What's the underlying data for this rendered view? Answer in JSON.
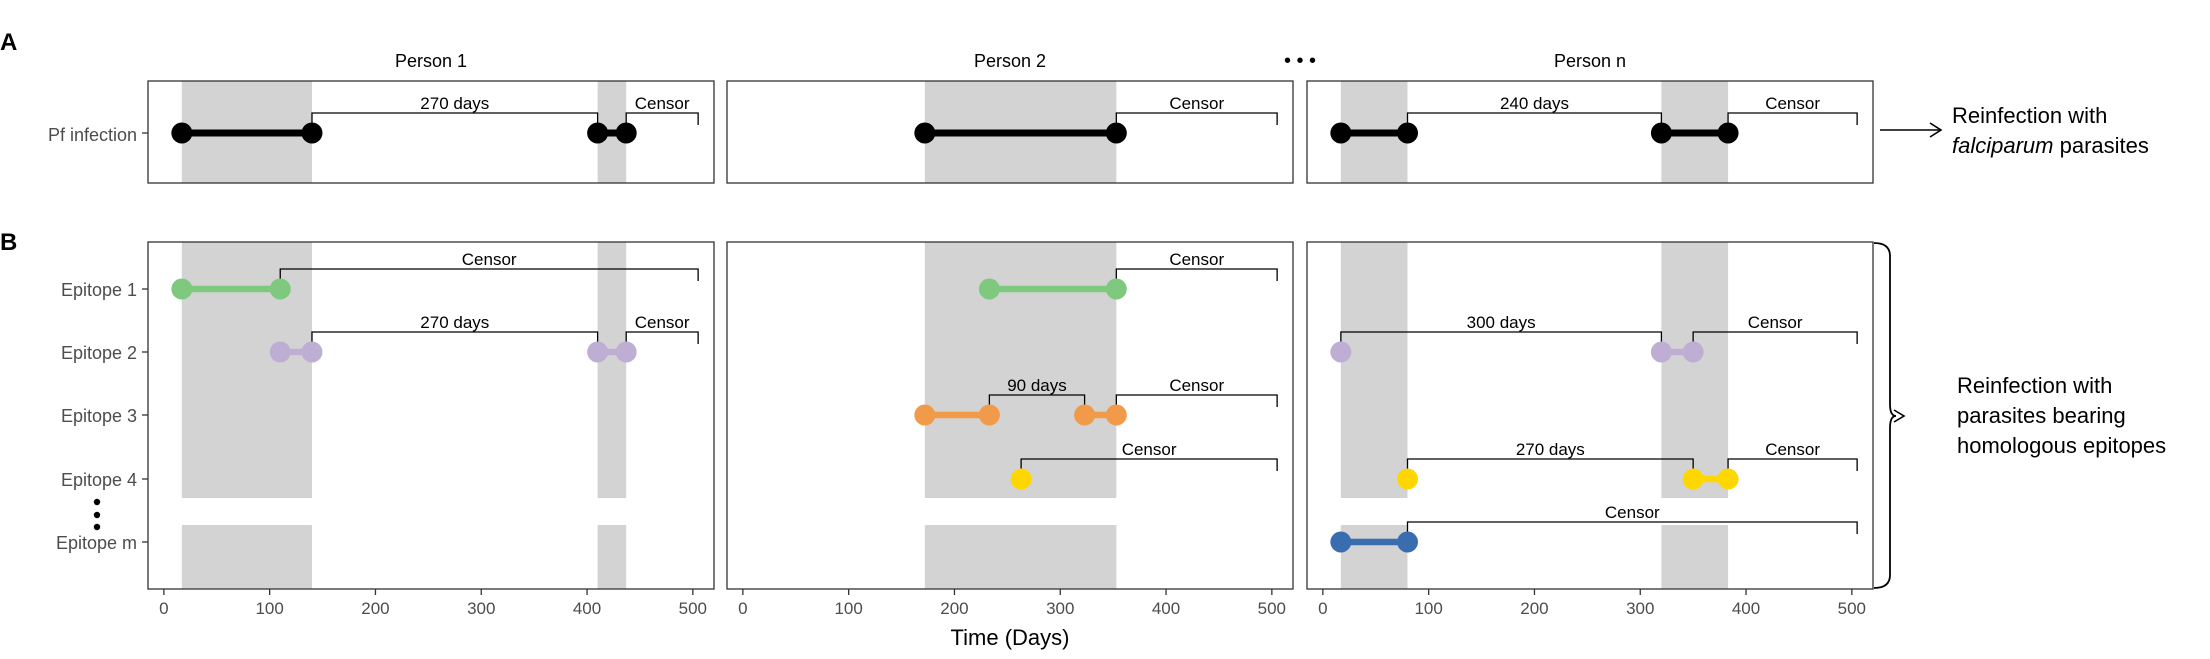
{
  "panel_labels": [
    "A",
    "B"
  ],
  "person_titles": [
    "Person 1",
    "Person 2",
    "Person n"
  ],
  "ellipsis": "• • •",
  "row_a_label": "Pf infection",
  "row_b_labels": [
    "Epitope 1",
    "Epitope 2",
    "Epitope 3",
    "Epitope 4",
    "Epitope m"
  ],
  "xaxis": {
    "label": "Time (Days)",
    "ticks": [
      0,
      100,
      200,
      300,
      400,
      500
    ],
    "range": [
      -15,
      520
    ]
  },
  "annotation_a": {
    "line1": "Reinfection with",
    "line2_italic": "falciparum",
    "line2_rest": " parasites"
  },
  "annotation_b": {
    "lines": [
      "Reinfection with",
      "parasites bearing",
      "homologous epitopes"
    ]
  },
  "colors": {
    "pf": "#000000",
    "epitope1": "#7fc97f",
    "epitope2": "#beaed4",
    "epitope3": "#f09a4a",
    "epitope4": "#ffd700",
    "epitopem": "#3a6db0",
    "shade": "#d3d3d3",
    "frame": "#333333"
  },
  "chart_data": [
    {
      "type": "timeline",
      "person": "Person 1",
      "shaded_periods": [
        [
          17,
          140
        ],
        [
          410,
          437
        ]
      ],
      "panel_a": {
        "segments": [
          [
            17,
            140
          ],
          [
            410,
            437
          ]
        ],
        "brackets": [
          {
            "start": 140,
            "end": 410,
            "label": "270 days"
          },
          {
            "start": 437,
            "end": 505,
            "label": "Censor"
          }
        ]
      },
      "panel_b": [
        {
          "epitope": "Epitope 1",
          "color": "epitope1",
          "segments": [
            [
              17,
              110
            ]
          ],
          "brackets": [
            {
              "start": 110,
              "end": 505,
              "label": "Censor"
            }
          ]
        },
        {
          "epitope": "Epitope 2",
          "color": "epitope2",
          "segments": [
            [
              110,
              140
            ],
            [
              410,
              437
            ]
          ],
          "brackets": [
            {
              "start": 140,
              "end": 410,
              "label": "270 days"
            },
            {
              "start": 437,
              "end": 505,
              "label": "Censor"
            }
          ]
        },
        {
          "epitope": "Epitope 3",
          "color": "epitope3",
          "segments": [],
          "brackets": []
        },
        {
          "epitope": "Epitope 4",
          "color": "epitope4",
          "segments": [],
          "brackets": []
        },
        {
          "epitope": "Epitope m",
          "color": "epitopem",
          "segments": [],
          "brackets": []
        }
      ]
    },
    {
      "type": "timeline",
      "person": "Person 2",
      "shaded_periods": [
        [
          172,
          353
        ]
      ],
      "panel_a": {
        "segments": [
          [
            172,
            353
          ]
        ],
        "brackets": [
          {
            "start": 353,
            "end": 505,
            "label": "Censor"
          }
        ]
      },
      "panel_b": [
        {
          "epitope": "Epitope 1",
          "color": "epitope1",
          "segments": [
            [
              233,
              353
            ]
          ],
          "brackets": [
            {
              "start": 353,
              "end": 505,
              "label": "Censor"
            }
          ]
        },
        {
          "epitope": "Epitope 2",
          "color": "epitope2",
          "segments": [],
          "brackets": []
        },
        {
          "epitope": "Epitope 3",
          "color": "epitope3",
          "segments": [
            [
              172,
              233
            ],
            [
              323,
              353
            ]
          ],
          "brackets": [
            {
              "start": 233,
              "end": 323,
              "label": "90 days"
            },
            {
              "start": 353,
              "end": 505,
              "label": "Censor"
            }
          ]
        },
        {
          "epitope": "Epitope 4",
          "color": "epitope4",
          "segments": [
            [
              263,
              263
            ]
          ],
          "brackets": [
            {
              "start": 263,
              "end": 505,
              "label": "Censor"
            }
          ]
        },
        {
          "epitope": "Epitope m",
          "color": "epitopem",
          "segments": [],
          "brackets": []
        }
      ]
    },
    {
      "type": "timeline",
      "person": "Person n",
      "shaded_periods": [
        [
          17,
          80
        ],
        [
          320,
          383
        ]
      ],
      "panel_a": {
        "segments": [
          [
            17,
            80
          ],
          [
            320,
            383
          ]
        ],
        "brackets": [
          {
            "start": 80,
            "end": 320,
            "label": "240 days"
          },
          {
            "start": 383,
            "end": 505,
            "label": "Censor"
          }
        ]
      },
      "panel_b": [
        {
          "epitope": "Epitope 1",
          "color": "epitope1",
          "segments": [],
          "brackets": []
        },
        {
          "epitope": "Epitope 2",
          "color": "epitope2",
          "segments": [
            [
              17,
              17
            ],
            [
              320,
              350
            ]
          ],
          "brackets": [
            {
              "start": 17,
              "end": 320,
              "label": "300 days"
            },
            {
              "start": 350,
              "end": 505,
              "label": "Censor"
            }
          ]
        },
        {
          "epitope": "Epitope 3",
          "color": "epitope3",
          "segments": [],
          "brackets": []
        },
        {
          "epitope": "Epitope 4",
          "color": "epitope4",
          "segments": [
            [
              80,
              80
            ],
            [
              350,
              383
            ]
          ],
          "brackets": [
            {
              "start": 80,
              "end": 350,
              "label": "270 days"
            },
            {
              "start": 383,
              "end": 505,
              "label": "Censor"
            }
          ]
        },
        {
          "epitope": "Epitope m",
          "color": "epitopem",
          "segments": [
            [
              17,
              80
            ]
          ],
          "brackets": [
            {
              "start": 80,
              "end": 505,
              "label": "Censor"
            }
          ]
        }
      ]
    }
  ]
}
